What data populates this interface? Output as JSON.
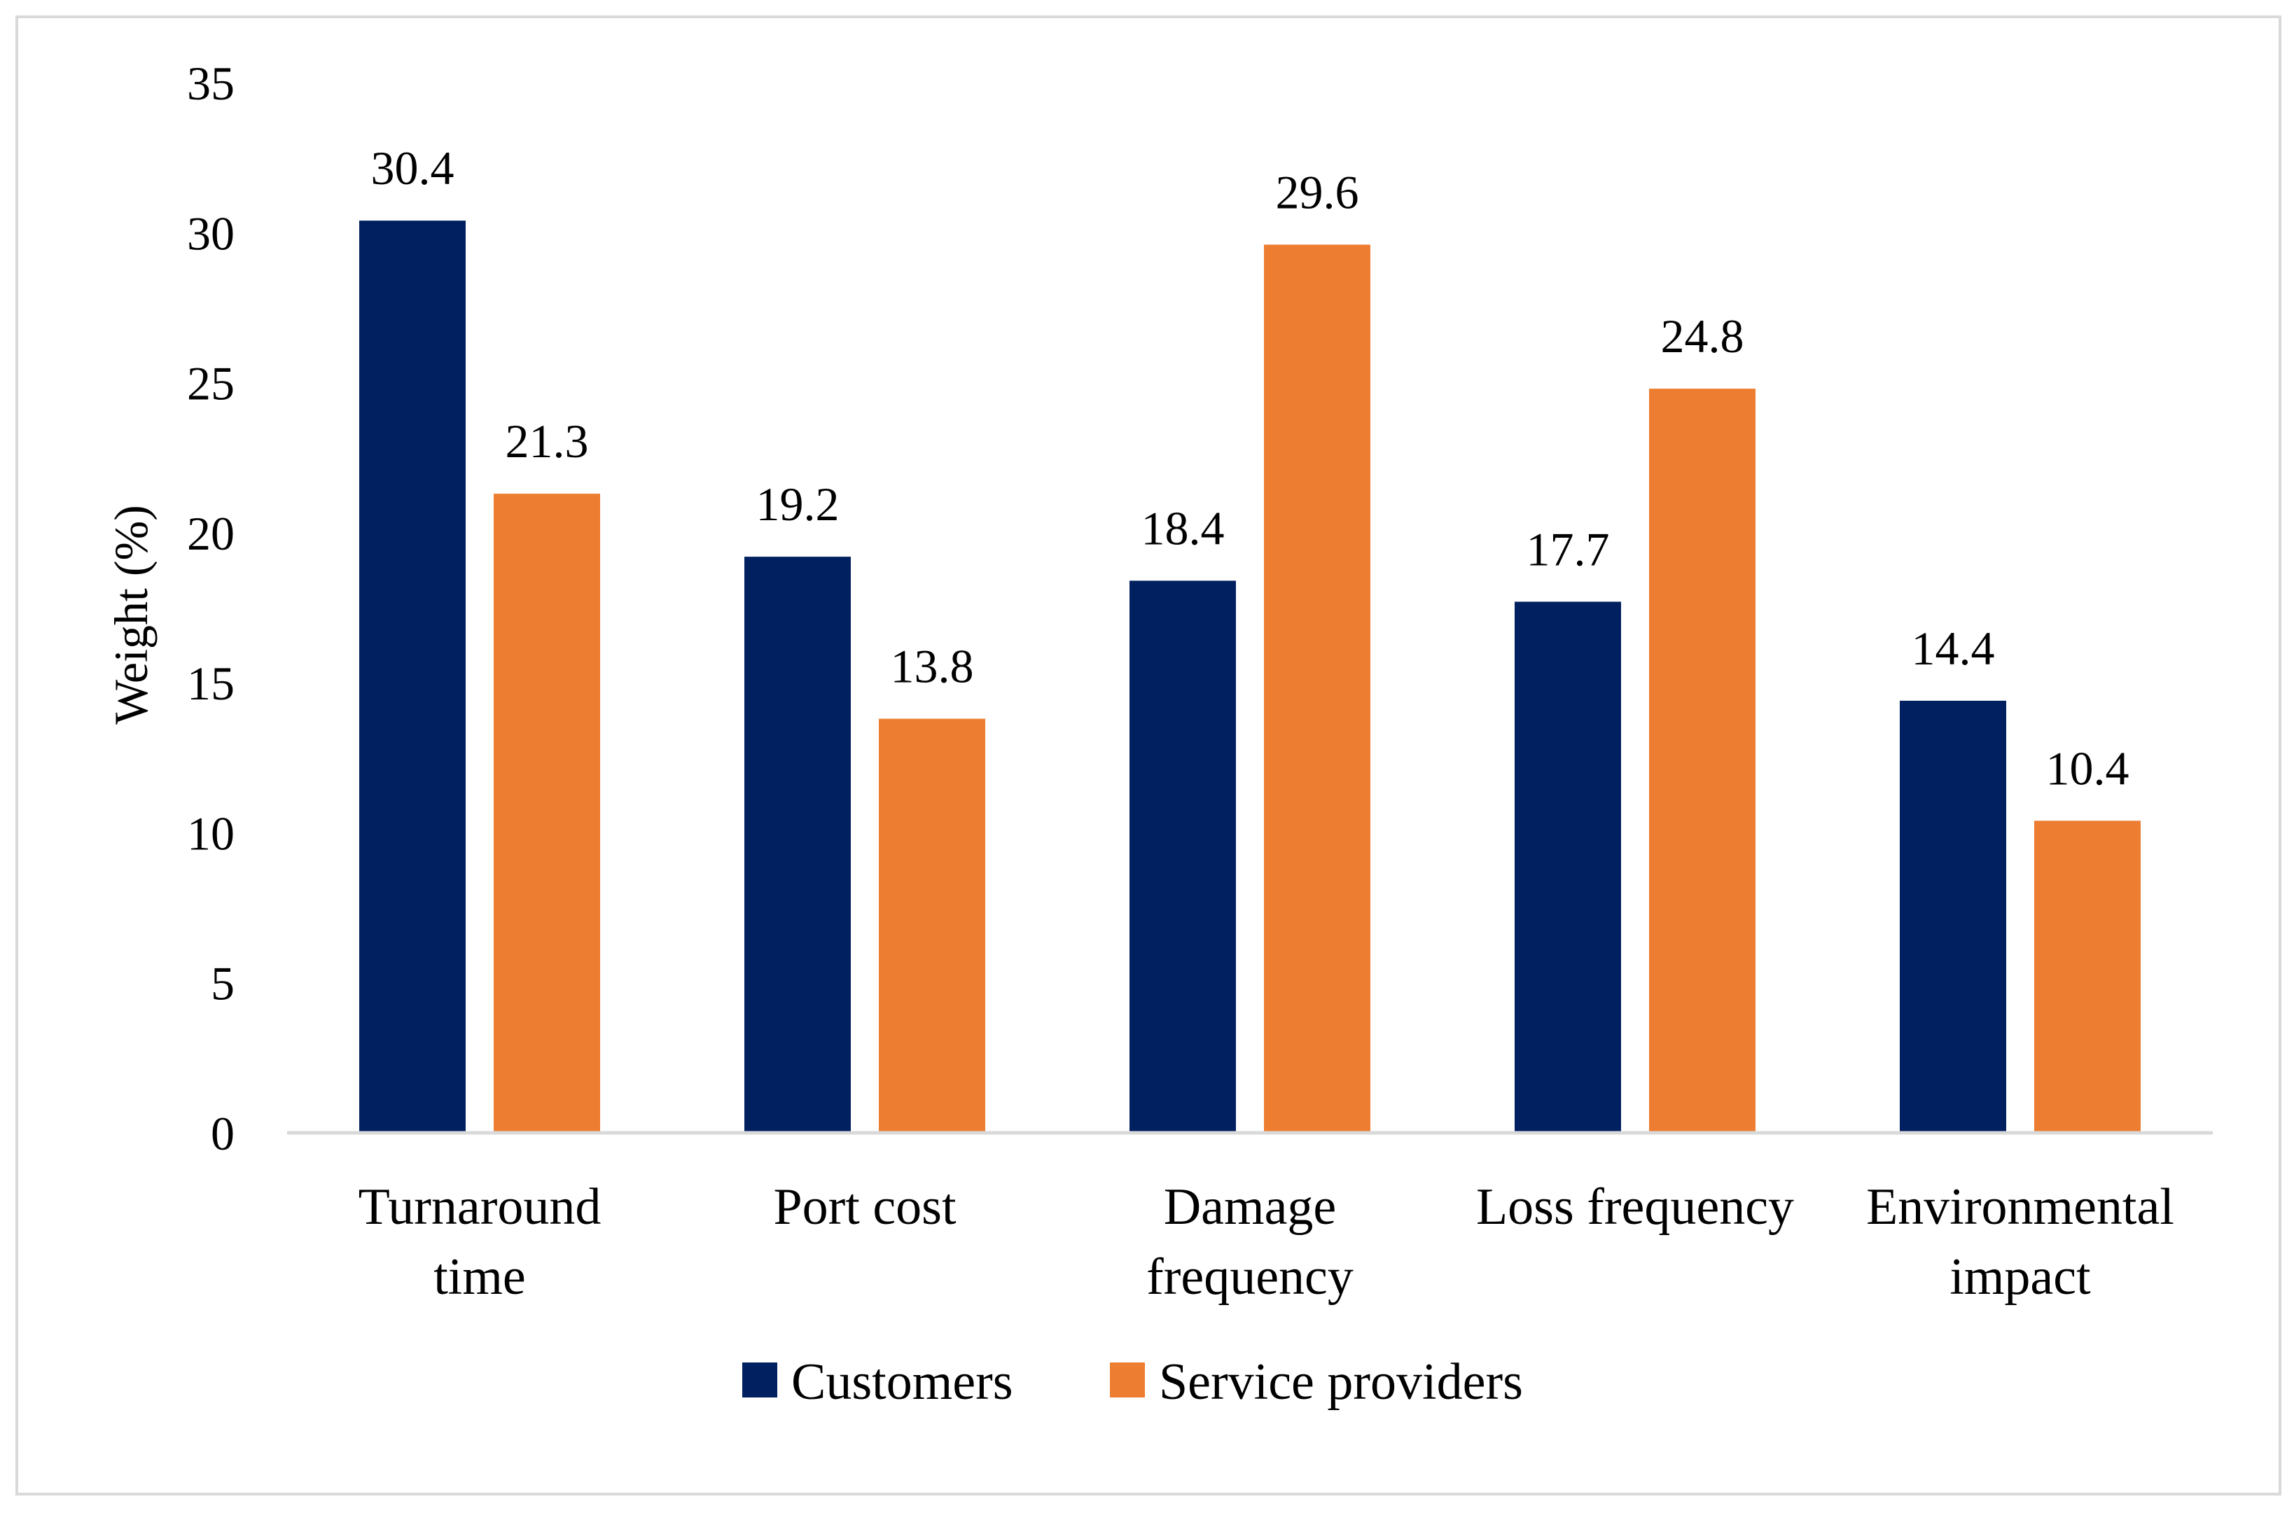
{
  "chart_data": {
    "type": "bar",
    "title": "",
    "xlabel": "",
    "ylabel": "Weight (%)",
    "ylim": [
      0,
      35
    ],
    "yticks": [
      "0",
      "5",
      "10",
      "15",
      "20",
      "25",
      "30",
      "35"
    ],
    "grid": false,
    "legend_position": "bottom",
    "categories": [
      [
        "Turnaround",
        "time"
      ],
      [
        "Port cost"
      ],
      [
        "Damage",
        "frequency"
      ],
      [
        "Loss frequency"
      ],
      [
        "Environmental",
        "impact"
      ]
    ],
    "series": [
      {
        "name": "Customers",
        "color": "#002060",
        "values": [
          30.4,
          19.2,
          18.4,
          17.7,
          14.4
        ],
        "labels": [
          "30.4",
          "19.2",
          "18.4",
          "17.7",
          "14.4"
        ]
      },
      {
        "name": "Service providers",
        "color": "#ED7D31",
        "values": [
          21.3,
          13.8,
          29.6,
          24.8,
          10.4
        ],
        "labels": [
          "21.3",
          "13.8",
          "29.6",
          "24.8",
          "10.4"
        ]
      }
    ]
  }
}
